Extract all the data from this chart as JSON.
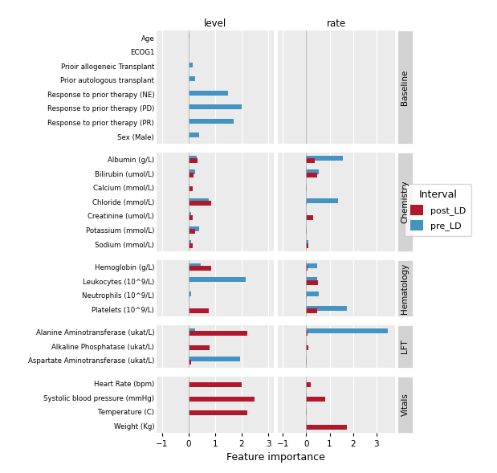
{
  "groups": [
    {
      "name": "Baseline",
      "features": [
        "Age",
        "ECOG1",
        "Prioir allogeneic Transplant",
        "Prior autologous transplant",
        "Response to prior therapy (NE)",
        "Response to prior therapy (PD)",
        "Response to prior therapy (PR)",
        "Sex (Male)"
      ],
      "level_post": [
        0,
        0,
        0,
        0,
        0,
        0,
        0,
        0
      ],
      "level_pre": [
        0.05,
        0.02,
        0.15,
        0.25,
        1.5,
        2.0,
        1.7,
        0.4
      ],
      "rate_post": [
        0,
        0,
        0,
        0,
        0,
        0,
        0,
        0
      ],
      "rate_pre": [
        0,
        0,
        0,
        0,
        0,
        0,
        0,
        0
      ]
    },
    {
      "name": "Chemistry",
      "features": [
        "Albumin (g/L)",
        "Bilirubin (umol/L)",
        "Calcium (mmol/L)",
        "Chloride (mmol/L)",
        "Creatinine (umol/L)",
        "Potassium (mmol/L)",
        "Sodium (mmol/L)"
      ],
      "level_post": [
        0.35,
        0.2,
        0.15,
        0.85,
        0.15,
        0.25,
        0.15
      ],
      "level_pre": [
        0.3,
        0.25,
        0.05,
        0.75,
        0.1,
        0.4,
        0.1
      ],
      "rate_post": [
        0.35,
        0.45,
        0.02,
        0.02,
        0.3,
        0.02,
        0.1
      ],
      "rate_pre": [
        1.55,
        0.55,
        0.02,
        1.35,
        0.02,
        0.02,
        0.1
      ]
    },
    {
      "name": "Hematology",
      "features": [
        "Hemoglobin (g/L)",
        "Leukocytes (10^9/L)",
        "Neutrophils (10^9/L)",
        "Platelets (10^9/L)"
      ],
      "level_post": [
        0.85,
        0.02,
        0.05,
        0.75
      ],
      "level_pre": [
        0.45,
        2.15,
        0.1,
        0.05
      ],
      "rate_post": [
        0.05,
        0.5,
        0.02,
        0.45
      ],
      "rate_pre": [
        0.45,
        0.45,
        0.55,
        1.75
      ]
    },
    {
      "name": "LFT",
      "features": [
        "Alanine Aminotransferase (ukat/L)",
        "Alkaline Phosphatase (ukat/L)",
        "Aspartate Aminotransferase (ukat/L)"
      ],
      "level_post": [
        2.2,
        0.8,
        0.1
      ],
      "level_pre": [
        0.25,
        0.05,
        1.95
      ],
      "rate_post": [
        0.05,
        0.08,
        0.02
      ],
      "rate_pre": [
        3.5,
        0.02,
        0.02
      ]
    },
    {
      "name": "Vitals",
      "features": [
        "Heart Rate (bpm)",
        "Systolic blood pressure (mmHg)",
        "Temperature (C)",
        "Weight (Kg)"
      ],
      "level_post": [
        2.0,
        2.5,
        2.2,
        0.02
      ],
      "level_pre": [
        0.02,
        0.02,
        0.02,
        0.02
      ],
      "rate_post": [
        0.2,
        0.8,
        0.02,
        1.75
      ],
      "rate_pre": [
        0.02,
        0.02,
        0.02,
        0.02
      ]
    }
  ],
  "post_color": "#B2182B",
  "pre_color": "#4393C3",
  "xlim_level": [
    -1.2,
    3.2
  ],
  "xlim_rate": [
    -1.2,
    3.8
  ],
  "xticks": [
    -1,
    0,
    1,
    2,
    3
  ],
  "xlabel": "Feature importance",
  "panel_bg": "#EBEBEB",
  "strip_bg": "#D3D3D3",
  "grid_color": "#FFFFFF",
  "bar_height": 0.38
}
